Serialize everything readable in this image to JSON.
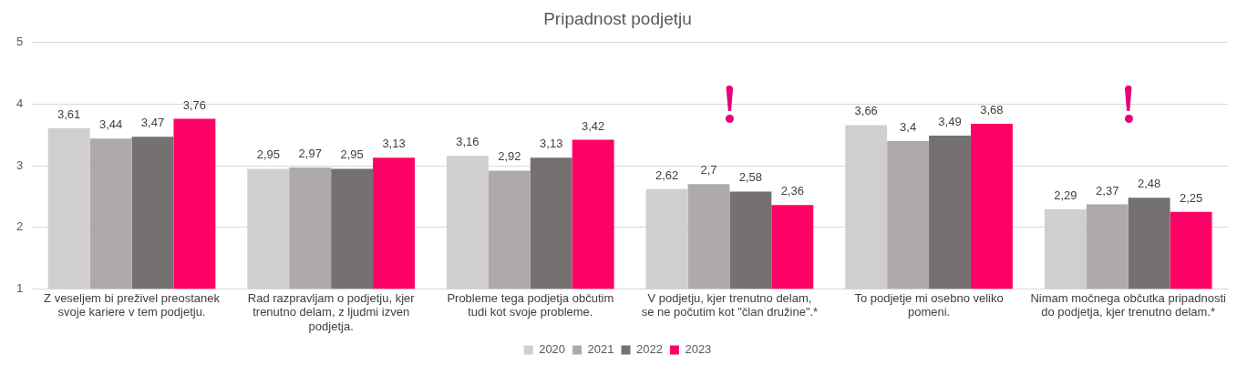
{
  "chart_data": {
    "type": "bar",
    "title": "Pripadnost podjetju",
    "categories": [
      "Z veseljem bi preživel preostanek svoje kariere v tem podjetju.",
      "Rad razpravljam o podjetju, kjer trenutno delam, z ljudmi izven podjetja.",
      "Probleme tega podjetja občutim tudi kot svoje probleme.",
      "V podjetju, kjer trenutno delam, se ne počutim kot \"član družine\".*",
      "To podjetje mi osebno veliko pomeni.",
      "Nimam močnega občutka pripadnosti do podjetja, kjer trenutno delam.*"
    ],
    "series": [
      {
        "name": "2020",
        "color": "#d0cece",
        "values": [
          3.61,
          2.95,
          3.16,
          2.62,
          3.66,
          2.29
        ],
        "value_labels": [
          "3,61",
          "2,95",
          "3,16",
          "2,62",
          "3,66",
          "2,29"
        ]
      },
      {
        "name": "2021",
        "color": "#aeaaaa",
        "values": [
          3.44,
          2.97,
          2.92,
          2.7,
          3.4,
          2.37
        ],
        "value_labels": [
          "3,44",
          "2,97",
          "2,92",
          "2,7",
          "3,4",
          "2,37"
        ]
      },
      {
        "name": "2022",
        "color": "#767171",
        "values": [
          3.47,
          2.95,
          3.13,
          2.58,
          3.49,
          2.48
        ],
        "value_labels": [
          "3,47",
          "2,95",
          "3,13",
          "2,58",
          "3,49",
          "2,48"
        ]
      },
      {
        "name": "2023",
        "color": "#ff0066",
        "values": [
          3.76,
          3.13,
          3.42,
          2.36,
          3.68,
          2.25
        ],
        "value_labels": [
          "3,76",
          "3,13",
          "3,42",
          "2,36",
          "3,68",
          "2,25"
        ]
      }
    ],
    "ylim": [
      1,
      5
    ],
    "yticks": [
      1,
      2,
      3,
      4,
      5
    ],
    "grid": "y",
    "legend": "bottom"
  }
}
